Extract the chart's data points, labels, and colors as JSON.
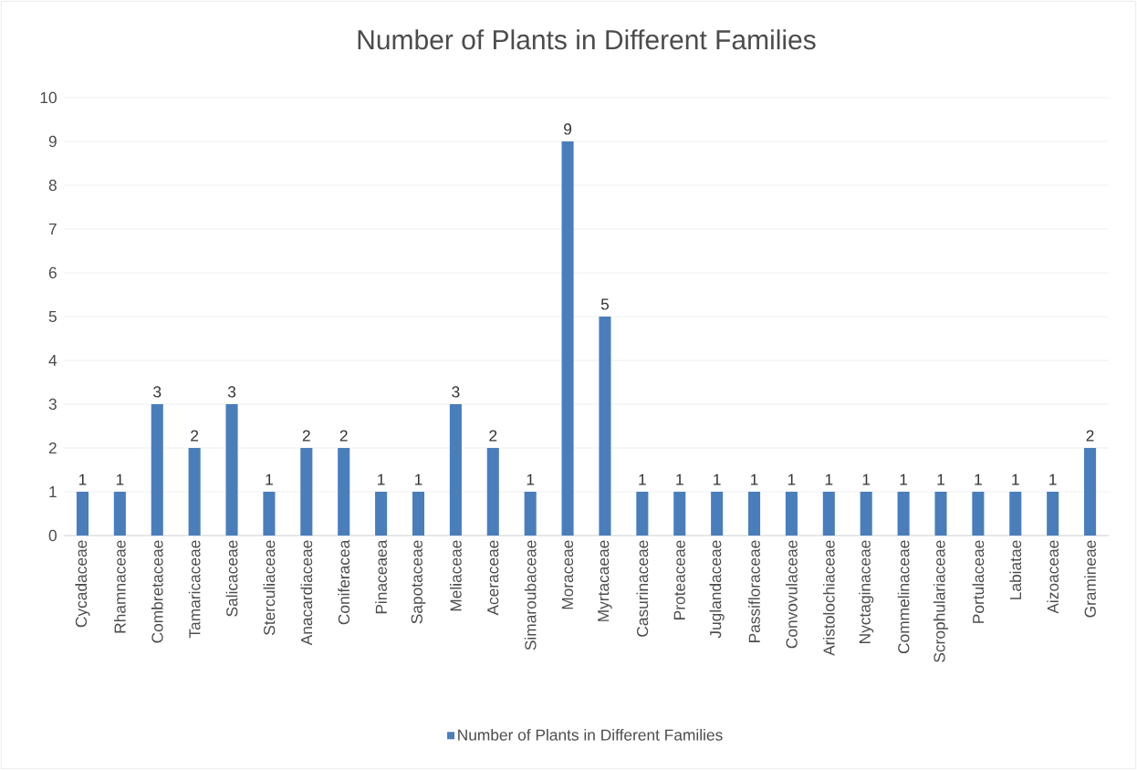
{
  "chart_data": {
    "type": "bar",
    "title": "Number of Plants in Different Families",
    "categories": [
      "Cycadaceae",
      "Rhamnaceae",
      "Combretaceae",
      "Tamaricaceae",
      "Salicaceae",
      "Sterculiaceae",
      "Anacardiaceae",
      "Coniferacea",
      "Pinaceaea",
      "Sapotaceae",
      "Meliaceae",
      "Aceraceae",
      "Simaroubaceae",
      "Moraceae",
      "Myrtacaeae",
      "Casurinaceae",
      "Proteaceae",
      "Juglandaceae",
      "Passifloraceae",
      "Convovulaceae",
      "Aristolochiaceae",
      "Nyctaginaceae",
      "Commelinaceae",
      "Scrophulariaceae",
      "Portulaceae",
      "Labiatae",
      "Aizoaceae",
      "Gramineae"
    ],
    "series": [
      {
        "name": "Number of Plants in Different Families",
        "color": "#4a7ebb",
        "values": [
          1,
          1,
          3,
          2,
          3,
          1,
          2,
          2,
          1,
          1,
          3,
          2,
          1,
          9,
          5,
          1,
          1,
          1,
          1,
          1,
          1,
          1,
          1,
          1,
          1,
          1,
          1,
          2
        ]
      }
    ],
    "ylim": [
      0,
      10
    ],
    "yticks": [
      0,
      1,
      2,
      3,
      4,
      5,
      6,
      7,
      8,
      9,
      10
    ],
    "grid": "y",
    "legend": "bottom",
    "data_labels": true
  }
}
